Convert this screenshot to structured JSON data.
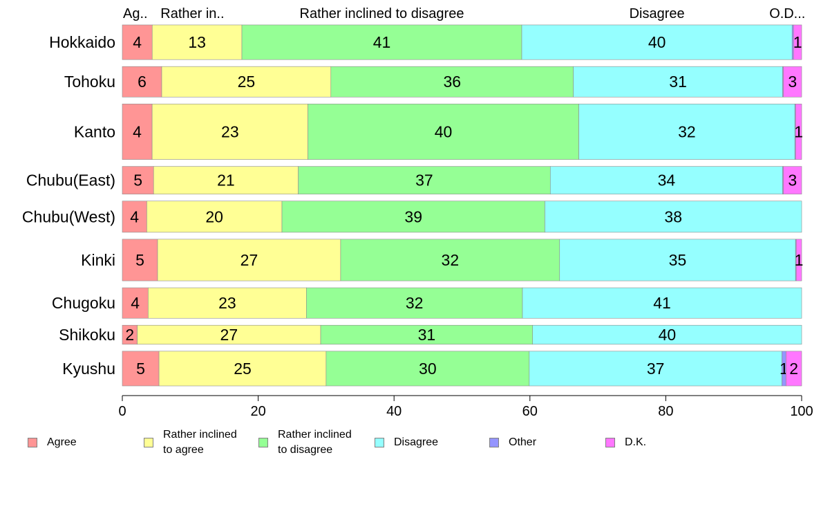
{
  "chart_data": {
    "type": "bar",
    "orientation": "horizontal",
    "stacked": true,
    "categories": [
      "Hokkaido",
      "Tohoku",
      "Kanto",
      "Chubu(East)",
      "Chubu(West)",
      "Kinki",
      "Chugoku",
      "Shikoku",
      "Kyushu"
    ],
    "series": [
      {
        "name": "Agree",
        "color": "#ff9595",
        "values": [
          4.4,
          5.8,
          4.4,
          4.6,
          3.6,
          5.2,
          3.8,
          2.2,
          5.4
        ]
      },
      {
        "name": "Rather inclined to agree",
        "color": "#ffff95",
        "values": [
          13.2,
          24.9,
          23.0,
          21.3,
          19.9,
          27.0,
          23.3,
          27.0,
          24.6
        ]
      },
      {
        "name": "Rather inclined to disagree",
        "color": "#95ff95",
        "values": [
          41.2,
          35.7,
          40.0,
          37.1,
          38.7,
          32.3,
          31.8,
          31.2,
          29.9
        ]
      },
      {
        "name": "Disagree",
        "color": "#95ffff",
        "values": [
          39.8,
          30.8,
          31.9,
          34.2,
          37.8,
          34.8,
          41.1,
          39.6,
          37.2
        ]
      },
      {
        "name": "Other",
        "color": "#9595ff",
        "values": [
          0.2,
          0.1,
          0.1,
          0.1,
          0.0,
          0.1,
          0.0,
          0.0,
          0.6
        ]
      },
      {
        "name": "D.K.",
        "color": "#ff77ff",
        "values": [
          1.2,
          2.7,
          0.9,
          2.7,
          0.0,
          0.8,
          0.0,
          0.0,
          2.3
        ]
      }
    ],
    "bar_labels": [
      [
        "4",
        "13",
        "41",
        "40",
        "",
        "1"
      ],
      [
        "6",
        "25",
        "36",
        "31",
        "",
        "3"
      ],
      [
        "4",
        "23",
        "40",
        "32",
        "",
        "1"
      ],
      [
        "5",
        "21",
        "37",
        "34",
        "",
        "3"
      ],
      [
        "4",
        "20",
        "39",
        "38",
        "",
        ""
      ],
      [
        "5",
        "27",
        "32",
        "35",
        "",
        "1"
      ],
      [
        "4",
        "23",
        "32",
        "41",
        "",
        ""
      ],
      [
        "2",
        "27",
        "31",
        "40",
        "",
        ""
      ],
      [
        "5",
        "25",
        "30",
        "37",
        "1",
        "2"
      ]
    ],
    "row_weights": [
      1.0,
      0.88,
      1.6,
      0.8,
      0.9,
      1.2,
      0.88,
      0.55,
      1.0
    ],
    "top_labels": [
      "Ag..",
      "Rather in..",
      "Rather inclined to disagree",
      "Disagree",
      "O..",
      "D..."
    ],
    "xlim": [
      0,
      100
    ],
    "xticks": [
      "0",
      "20",
      "40",
      "60",
      "80",
      "100"
    ],
    "title": "",
    "xlabel": "",
    "ylabel": "",
    "grid": false,
    "legend_position": "bottom"
  },
  "legend": [
    {
      "label": "Agree",
      "color": "#ff9595"
    },
    {
      "label": "Rather inclined\nto agree",
      "color": "#ffff95"
    },
    {
      "label": "Rather inclined\nto disagree",
      "color": "#95ff95"
    },
    {
      "label": "Disagree",
      "color": "#95ffff"
    },
    {
      "label": "Other",
      "color": "#9595ff"
    },
    {
      "label": "D.K.",
      "color": "#ff77ff"
    }
  ]
}
